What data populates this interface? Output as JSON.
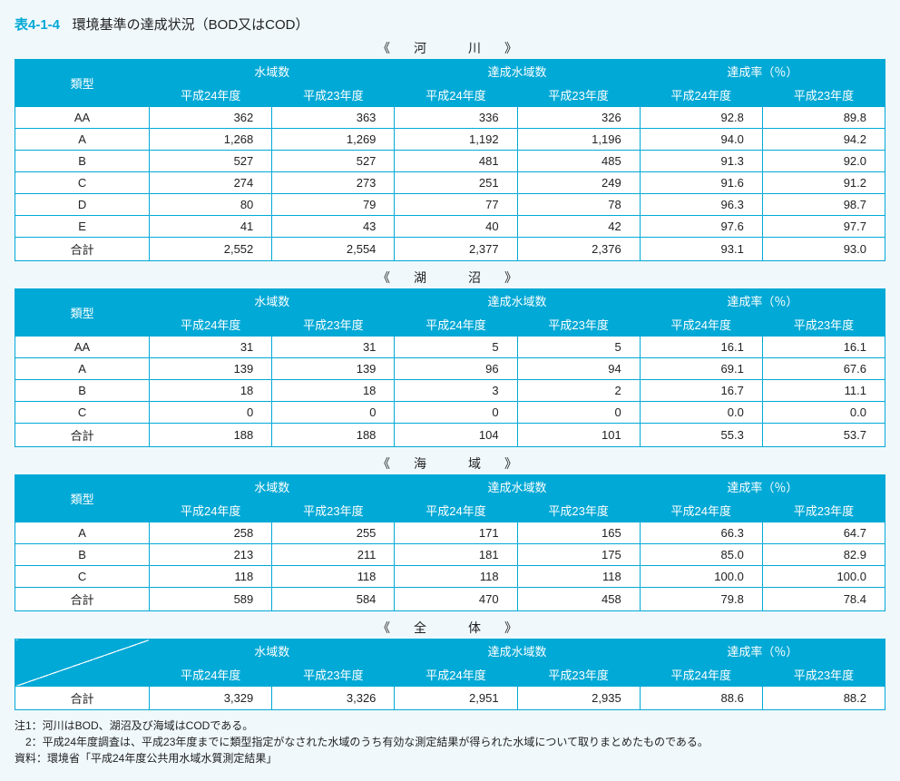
{
  "title": {
    "num": "表4-1-4",
    "text": "環境基準の達成状況（BOD又はCOD）"
  },
  "colhead": {
    "type": "類型",
    "g1": "水域数",
    "g2": "達成水域数",
    "g3": "達成率（％）",
    "y24": "平成24年度",
    "y23": "平成23年度"
  },
  "sections": [
    {
      "caption": "《　河　　川　》",
      "rows": [
        {
          "cat": "AA",
          "v": [
            "362",
            "363",
            "336",
            "326",
            "92.8",
            "89.8"
          ]
        },
        {
          "cat": "A",
          "v": [
            "1,268",
            "1,269",
            "1,192",
            "1,196",
            "94.0",
            "94.2"
          ]
        },
        {
          "cat": "B",
          "v": [
            "527",
            "527",
            "481",
            "485",
            "91.3",
            "92.0"
          ]
        },
        {
          "cat": "C",
          "v": [
            "274",
            "273",
            "251",
            "249",
            "91.6",
            "91.2"
          ]
        },
        {
          "cat": "D",
          "v": [
            "80",
            "79",
            "77",
            "78",
            "96.3",
            "98.7"
          ]
        },
        {
          "cat": "E",
          "v": [
            "41",
            "43",
            "40",
            "42",
            "97.6",
            "97.7"
          ]
        },
        {
          "cat": "合計",
          "v": [
            "2,552",
            "2,554",
            "2,377",
            "2,376",
            "93.1",
            "93.0"
          ]
        }
      ]
    },
    {
      "caption": "《　湖　　沼　》",
      "rows": [
        {
          "cat": "AA",
          "v": [
            "31",
            "31",
            "5",
            "5",
            "16.1",
            "16.1"
          ]
        },
        {
          "cat": "A",
          "v": [
            "139",
            "139",
            "96",
            "94",
            "69.1",
            "67.6"
          ]
        },
        {
          "cat": "B",
          "v": [
            "18",
            "18",
            "3",
            "2",
            "16.7",
            "11.1"
          ]
        },
        {
          "cat": "C",
          "v": [
            "0",
            "0",
            "0",
            "0",
            "0.0",
            "0.0"
          ]
        },
        {
          "cat": "合計",
          "v": [
            "188",
            "188",
            "104",
            "101",
            "55.3",
            "53.7"
          ]
        }
      ]
    },
    {
      "caption": "《　海　　域　》",
      "rows": [
        {
          "cat": "A",
          "v": [
            "258",
            "255",
            "171",
            "165",
            "66.3",
            "64.7"
          ]
        },
        {
          "cat": "B",
          "v": [
            "213",
            "211",
            "181",
            "175",
            "85.0",
            "82.9"
          ]
        },
        {
          "cat": "C",
          "v": [
            "118",
            "118",
            "118",
            "118",
            "100.0",
            "100.0"
          ]
        },
        {
          "cat": "合計",
          "v": [
            "589",
            "584",
            "470",
            "458",
            "79.8",
            "78.4"
          ]
        }
      ]
    },
    {
      "caption": "《　全　　体　》",
      "diag": true,
      "rows": [
        {
          "cat": "合計",
          "v": [
            "3,329",
            "3,326",
            "2,951",
            "2,935",
            "88.6",
            "88.2"
          ]
        }
      ]
    }
  ],
  "notes": {
    "n1": "注1：河川はBOD、湖沼及び海域はCODである。",
    "n2": "　2：平成24年度調査は、平成23年度までに類型指定がなされた水域のうち有効な測定結果が得られた水域について取りまとめたものである。",
    "src": "資料：環境省「平成24年度公共用水域水質測定結果」"
  },
  "style": {
    "header_bg": "#00a9d6",
    "header_fg": "#ffffff",
    "border": "#00a9d6",
    "page_bg": "#f0f8fc",
    "title_color": "#00a9d6"
  }
}
